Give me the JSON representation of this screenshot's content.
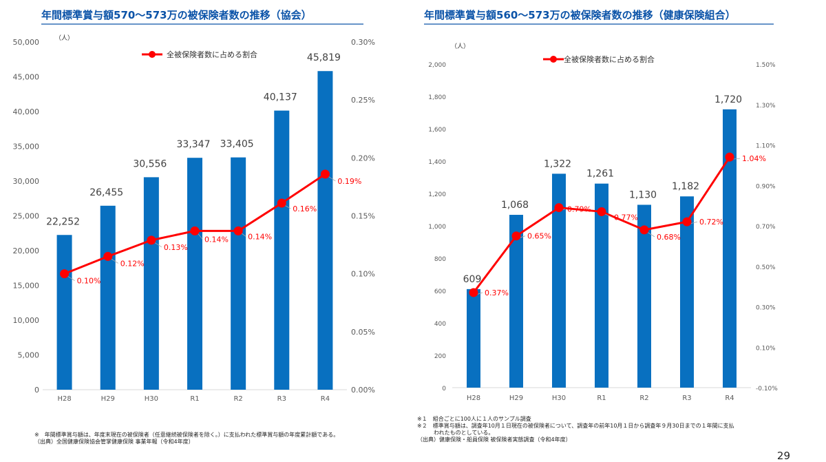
{
  "chart_data": [
    {
      "type": "bar+line",
      "title": "年間標準賞与額570～573万の被保険者数の推移（協会）",
      "categories": [
        "H28",
        "H29",
        "H30",
        "R1",
        "R2",
        "R3",
        "R4"
      ],
      "unit_label": "（人）",
      "ylim": [
        0,
        50000
      ],
      "y_ticks": [
        "0",
        "5,000",
        "10,000",
        "15,000",
        "20,000",
        "25,000",
        "30,000",
        "35,000",
        "40,000",
        "45,000",
        "50,000"
      ],
      "y2lim": [
        0,
        0.3
      ],
      "y2_ticks": [
        "0.00%",
        "0.05%",
        "0.10%",
        "0.15%",
        "0.20%",
        "0.25%",
        "0.30%"
      ],
      "bar_values": [
        22252,
        26455,
        30556,
        33347,
        33405,
        40137,
        45819
      ],
      "bar_labels": [
        "22,252",
        "26,455",
        "30,556",
        "33,347",
        "33,405",
        "40,137",
        "45,819"
      ],
      "line_name": "全被保険者数に占める割合",
      "line_values": [
        0.1,
        0.115,
        0.129,
        0.137,
        0.137,
        0.161,
        0.186
      ],
      "line_labels": [
        "0.10%",
        "0.12%",
        "0.13%",
        "0.14%",
        "0.14%",
        "0.16%",
        "0.19%"
      ],
      "legend": "top-center",
      "grid": false
    },
    {
      "type": "bar+line",
      "title": "年間標準賞与額560～573万の被保険者数の推移（健康保険組合）",
      "categories": [
        "H28",
        "H29",
        "H30",
        "R1",
        "R2",
        "R3",
        "R4"
      ],
      "unit_label": "（人）",
      "ylim": [
        0,
        2000
      ],
      "y_ticks": [
        "0",
        "200",
        "400",
        "600",
        "800",
        "1,000",
        "1,200",
        "1,400",
        "1,600",
        "1,800",
        "2,000"
      ],
      "y2lim": [
        -0.1,
        1.5
      ],
      "y2_ticks": [
        "-0.10%",
        "0.10%",
        "0.30%",
        "0.50%",
        "0.70%",
        "0.90%",
        "1.10%",
        "1.30%",
        "1.50%"
      ],
      "bar_values": [
        609,
        1068,
        1322,
        1261,
        1130,
        1182,
        1720
      ],
      "bar_labels": [
        "609",
        "1,068",
        "1,322",
        "1,261",
        "1,130",
        "1,182",
        "1,720"
      ],
      "line_name": "全被保険者数に占める割合",
      "line_values": [
        0.37,
        0.65,
        0.79,
        0.77,
        0.68,
        0.72,
        1.04
      ],
      "line_labels": [
        "0.37%",
        "0.65%",
        "0.79%",
        "0.77%",
        "0.68%",
        "0.72%",
        "1.04%"
      ],
      "legend": "top-center",
      "grid": false
    }
  ],
  "colors": {
    "bar": "#0870c0",
    "line": "#ff0000",
    "title": "#0b53a8",
    "axis_text": "#595959"
  },
  "notes": {
    "left": [
      "※　年間標準賞与額は、年度末現在の被保険者（任意継続被保険者を除く。）に支払われた標準賞与額の年度累計額である。",
      "（出典）全国健康保険協会管掌健康保険 事業年報（令和4年度）"
    ],
    "right": [
      "※１　組合ごとに100人に１人のサンプル調査",
      "※２　標準賞与額は、調査年10月１日現在の被保険者について、調査年の前年10月１日から調査年９月30日までの１年間に支払",
      "　　　われたものとしている。",
      "（出典）健康保険・船員保険 被保険者実態調査（令和4年度）"
    ]
  },
  "page_number": "29"
}
